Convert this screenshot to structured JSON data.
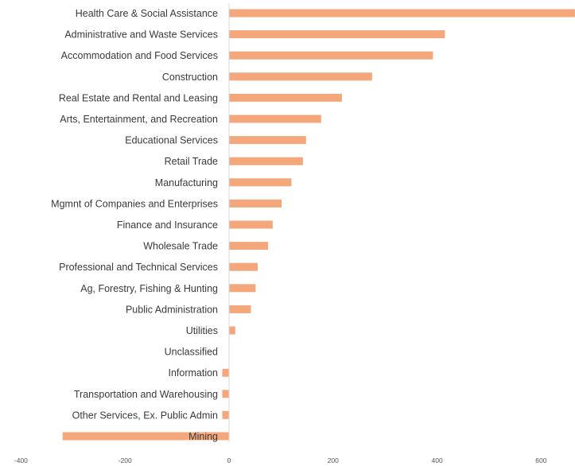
{
  "chart_data": {
    "type": "bar",
    "orientation": "horizontal",
    "title": "",
    "xlabel": "",
    "ylabel": "",
    "categories": [
      "Health Care & Social Assistance",
      "Administrative and Waste Services",
      "Accommodation and Food Services",
      "Construction",
      "Real Estate and Rental and Leasing",
      "Arts, Entertainment, and Recreation",
      "Educational Services",
      "Retail Trade",
      "Manufacturing",
      "Mgmnt of Companies and Enterprises",
      "Finance and Insurance",
      "Wholesale Trade",
      "Professional and Technical Services",
      "Ag, Forestry, Fishing & Hunting",
      "Public Administration",
      "Utilities",
      "Unclassified",
      "Information",
      "Transportation and Warehousing",
      "Other Services, Ex. Public Admin",
      "Mining"
    ],
    "values": [
      665,
      415,
      392,
      275,
      217,
      177,
      148,
      142,
      120,
      101,
      84,
      75,
      55,
      51,
      42,
      12,
      0,
      -13,
      -13,
      -13,
      -320
    ],
    "xlim": [
      -400,
      650
    ],
    "xticks": [
      -400,
      -200,
      0,
      200,
      400,
      600
    ],
    "bar_color": "#f4a77a",
    "grid": false
  }
}
